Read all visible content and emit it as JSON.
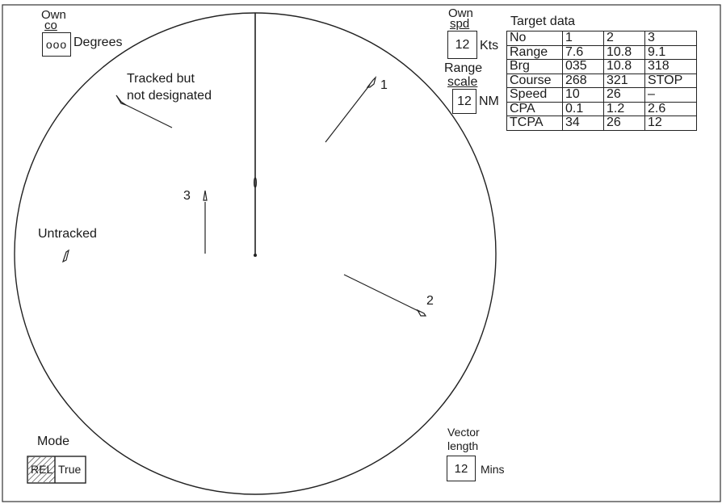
{
  "own_course": {
    "label_line1": "Own",
    "label_line2": "co",
    "value": "ooo",
    "unit": "Degrees"
  },
  "own_speed": {
    "label_line1": "Own",
    "label_line2": "spd",
    "value": "12",
    "unit": "Kts"
  },
  "range_scale": {
    "label_line1": "Range",
    "label_line2": "scale",
    "value": "12",
    "unit": "NM"
  },
  "target_data": {
    "title": "Target data",
    "rows": [
      [
        "No",
        "1",
        "2",
        "3"
      ],
      [
        "Range",
        "7.6",
        "10.8",
        "9.1"
      ],
      [
        "Brg",
        "035",
        "10.8",
        "318"
      ],
      [
        "Course",
        "268",
        "321",
        "STOP"
      ],
      [
        "Speed",
        "10",
        "26",
        "–"
      ],
      [
        "CPA",
        "0.1",
        "1.2",
        "2.6"
      ],
      [
        "TCPA",
        "34",
        "26",
        "12"
      ]
    ]
  },
  "annotations": {
    "tracked_line1": "Tracked but",
    "tracked_line2": "not designated",
    "untracked": "Untracked",
    "target1": "1",
    "target2": "2",
    "target3": "3"
  },
  "mode": {
    "label": "Mode",
    "rel": "REL",
    "true": "True"
  },
  "vector_length": {
    "label_line1": "Vector",
    "label_line2": "length",
    "value": "12",
    "unit": "Mins"
  },
  "colors": {
    "ink": "#1a1a1a",
    "background": "#ffffff"
  }
}
